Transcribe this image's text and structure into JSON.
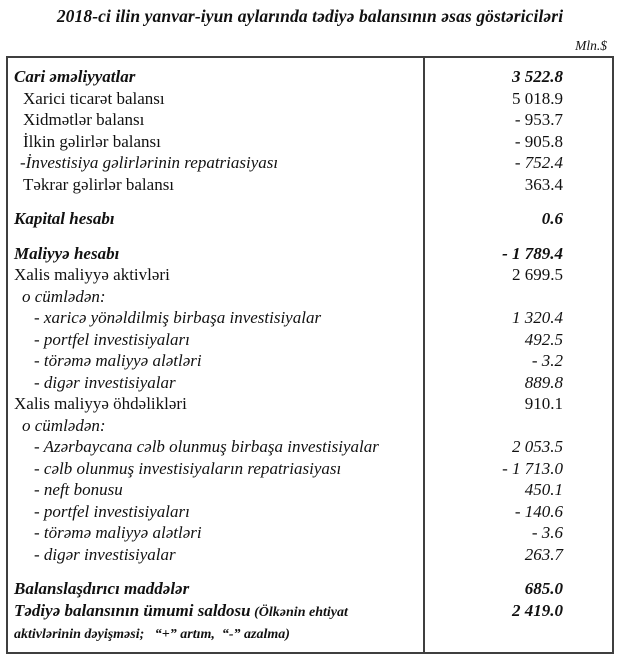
{
  "page": {
    "title": "2018-ci ilin yanvar-iyun aylarında tədiyə balansının əsas göstəriciləri",
    "unit_label": "Mln.$"
  },
  "table": {
    "rows": [
      {
        "label": "Cari əməliyyatlar",
        "value": "3 522.8",
        "style": "bold",
        "indent": 0
      },
      {
        "label": "Xarici ticarət balansı",
        "value": "5 018.9",
        "style": "normal",
        "indent": 1
      },
      {
        "label": "Xidmətlər balansı",
        "value": "- 953.7",
        "style": "normal",
        "indent": 1
      },
      {
        "label": "İlkin gəlirlər balansı",
        "value": "- 905.8",
        "style": "normal",
        "indent": 1
      },
      {
        "label": "-İnvestisiya gəlirlərinin repatriasiyası",
        "value": "- 752.4",
        "style": "italic",
        "indent": 2
      },
      {
        "label": "Təkrar gəlirlər balansı",
        "value": "363.4",
        "style": "normal",
        "indent": 1
      },
      {
        "type": "gap"
      },
      {
        "label": "Kapital hesabı",
        "value": "0.6",
        "style": "bold",
        "indent": 0
      },
      {
        "type": "gap"
      },
      {
        "label": "Maliyyə hesabı",
        "value": "- 1 789.4",
        "style": "bold",
        "indent": 0
      },
      {
        "label": "Xalis maliyyə aktivləri",
        "value": "2 699.5",
        "style": "normal",
        "indent": 0
      },
      {
        "label": "o cümlədən:",
        "value": "",
        "style": "italic",
        "indent": 3
      },
      {
        "label": "- xaricə yönəldilmiş birbaşa investisiyalar",
        "value": "1 320.4",
        "style": "italic",
        "indent": 4
      },
      {
        "label": "- portfel investisiyaları",
        "value": "492.5",
        "style": "italic",
        "indent": 4
      },
      {
        "label": "- törəmə maliyyə alətləri",
        "value": "- 3.2",
        "style": "italic",
        "indent": 4
      },
      {
        "label": "- digər investisiyalar",
        "value": "889.8",
        "style": "italic",
        "indent": 4
      },
      {
        "label": "Xalis maliyyə öhdəlikləri",
        "value": "910.1",
        "style": "normal",
        "indent": 0
      },
      {
        "label": "o cümlədən:",
        "value": "",
        "style": "italic",
        "indent": 3
      },
      {
        "label": "- Azərbaycana cəlb olunmuş birbaşa investisiyalar",
        "value": "2 053.5",
        "style": "italic",
        "indent": 4
      },
      {
        "label": "- cəlb olunmuş investisiyaların repatriasiyası",
        "value": "- 1 713.0",
        "style": "italic",
        "indent": 4
      },
      {
        "label": "- neft bonusu",
        "value": "450.1",
        "style": "italic",
        "indent": 4
      },
      {
        "label": "- portfel investisiyaları",
        "value": "- 140.6",
        "style": "italic",
        "indent": 4
      },
      {
        "label": "- törəmə maliyyə alətləri",
        "value": "- 3.6",
        "style": "italic",
        "indent": 4
      },
      {
        "label": "- digər investisiyalar",
        "value": "263.7",
        "style": "italic",
        "indent": 4
      },
      {
        "type": "gap"
      },
      {
        "label": "Balanslaşdırıcı maddələr",
        "value": "685.0",
        "style": "bold",
        "indent": 0
      },
      {
        "label": "Tədiyə balansının ümumi saldosu",
        "note": "(Ölkənin ehtiyat aktivlərinin dəyişməsi;   “+” artım,  “-” azalma)",
        "value": "2 419.0",
        "style": "bold",
        "indent": 0
      }
    ]
  }
}
